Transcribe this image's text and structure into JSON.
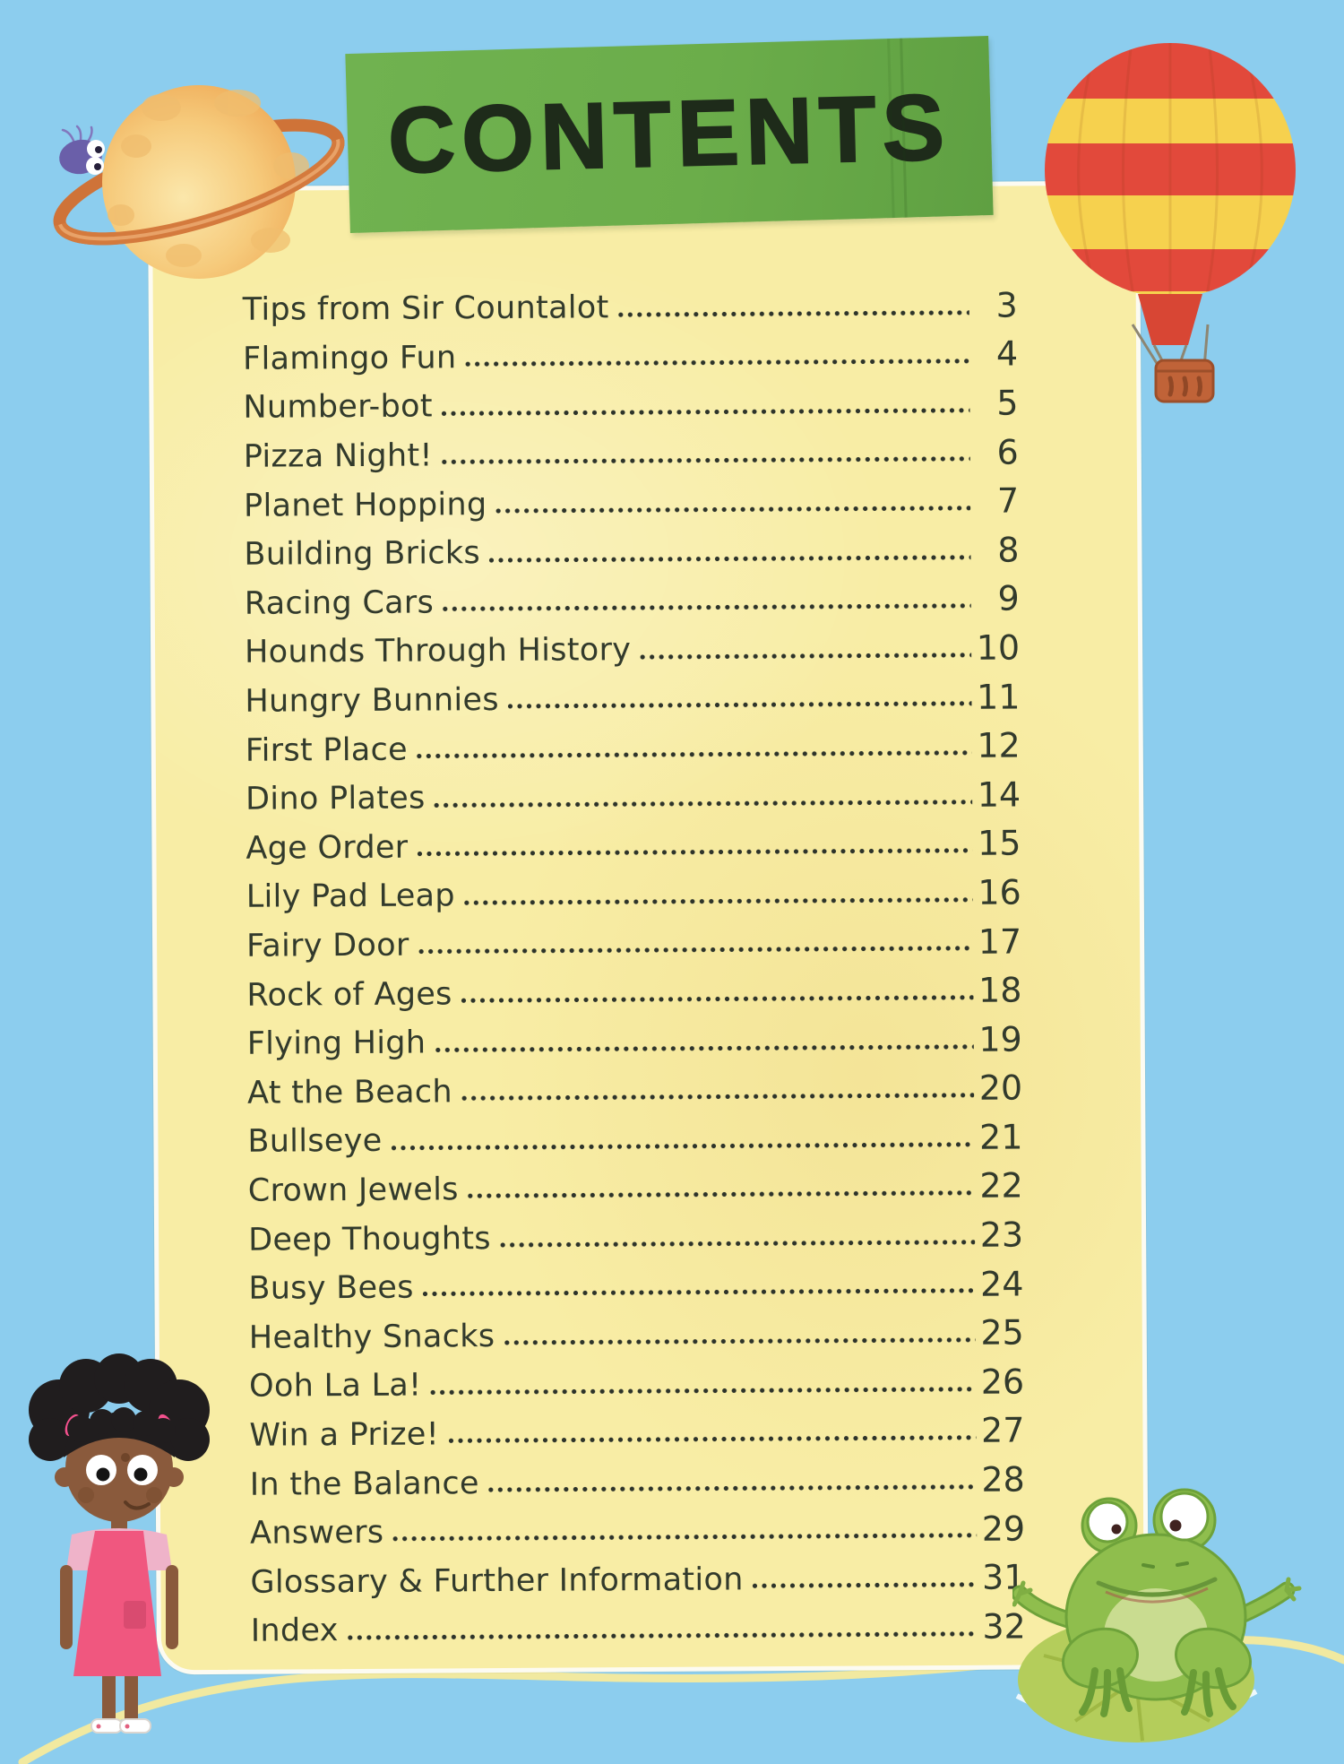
{
  "banner": {
    "title": "CONTENTS"
  },
  "contents": {
    "entries": [
      {
        "label": "Tips from Sir Countalot",
        "page": "3"
      },
      {
        "label": "Flamingo Fun",
        "page": "4"
      },
      {
        "label": "Number-bot",
        "page": "5"
      },
      {
        "label": "Pizza Night!",
        "page": "6"
      },
      {
        "label": "Planet Hopping",
        "page": "7"
      },
      {
        "label": "Building Bricks",
        "page": "8"
      },
      {
        "label": "Racing Cars",
        "page": "9"
      },
      {
        "label": "Hounds Through History",
        "page": "10"
      },
      {
        "label": "Hungry Bunnies",
        "page": "11"
      },
      {
        "label": "First Place",
        "page": "12"
      },
      {
        "label": "Dino Plates",
        "page": "14"
      },
      {
        "label": "Age Order",
        "page": "15"
      },
      {
        "label": "Lily Pad Leap",
        "page": "16"
      },
      {
        "label": "Fairy Door",
        "page": "17"
      },
      {
        "label": "Rock of Ages",
        "page": "18"
      },
      {
        "label": "Flying High",
        "page": "19"
      },
      {
        "label": "At the Beach",
        "page": "20"
      },
      {
        "label": "Bullseye",
        "page": "21"
      },
      {
        "label": "Crown Jewels",
        "page": "22"
      },
      {
        "label": "Deep Thoughts",
        "page": "23"
      },
      {
        "label": "Busy Bees",
        "page": "24"
      },
      {
        "label": "Healthy Snacks",
        "page": "25"
      },
      {
        "label": "Ooh La La!",
        "page": "26"
      },
      {
        "label": "Win a Prize!",
        "page": "27"
      },
      {
        "label": "In the Balance",
        "page": "28"
      },
      {
        "label": "Answers",
        "page": "29"
      },
      {
        "label": "Glossary & Further Information",
        "page": "31"
      },
      {
        "label": "Index",
        "page": "32"
      }
    ]
  },
  "illustrations": {
    "top_left": "saturn-planet-with-purple-bug",
    "top_right": "red-and-yellow-hot-air-balloon",
    "bottom_left": "girl-in-pink-dress",
    "bottom_right": "frog-on-lily-pad"
  },
  "colors": {
    "sky": "#8ccdee",
    "panel_yellow": "#f8eda5",
    "banner_green": "#6bad4a",
    "text": "#323a2c",
    "balloon_red": "#e2493b",
    "balloon_yellow": "#f6d14e",
    "frog_green": "#8fbe4d",
    "dress_pink": "#f0577f",
    "planet_orange": "#ec9f4a"
  }
}
